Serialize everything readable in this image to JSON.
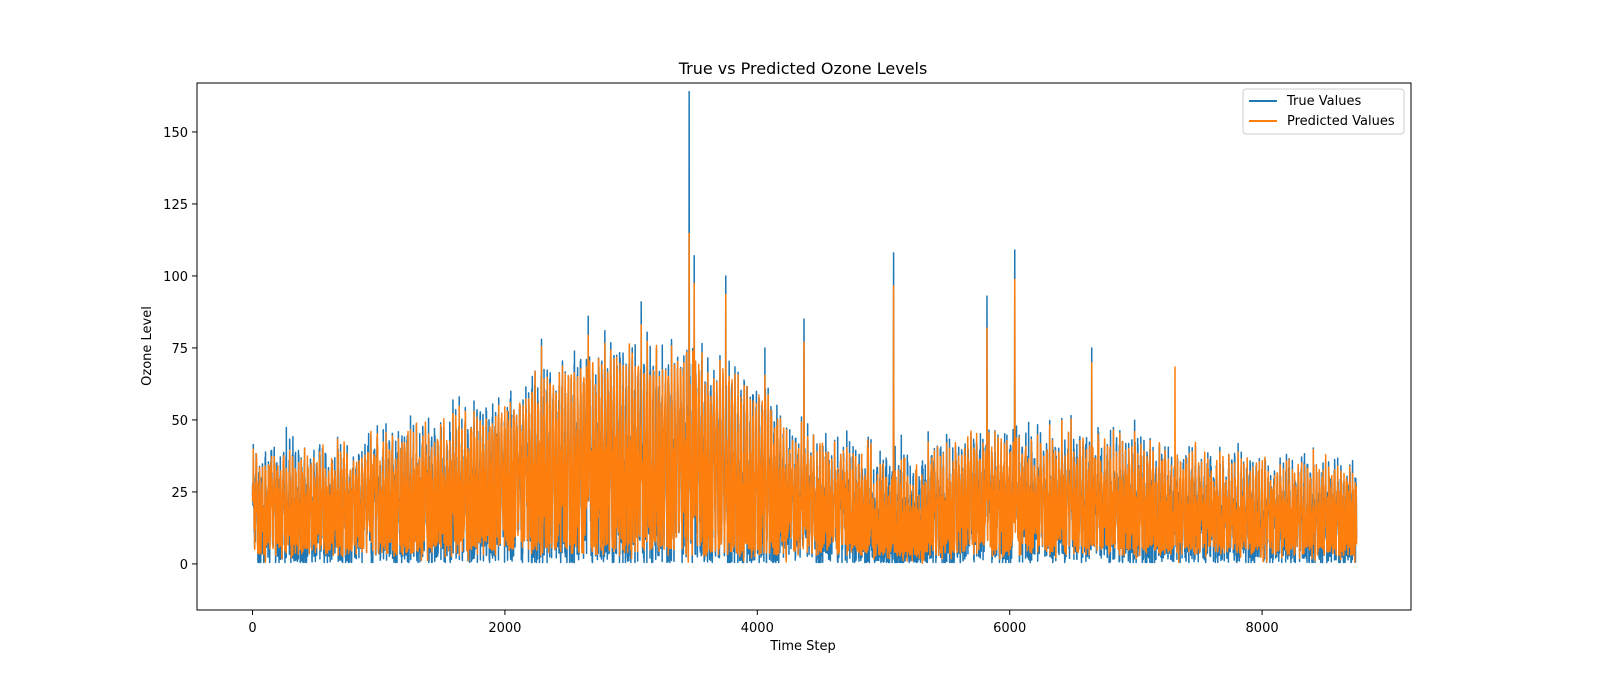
{
  "chart_data": {
    "type": "line",
    "title": "True vs Predicted Ozone Levels",
    "xlabel": "Time Step",
    "ylabel": "Ozone Level",
    "xlim": [
      -440,
      9180
    ],
    "ylim": [
      -16,
      167
    ],
    "x_ticks": [
      0,
      2000,
      4000,
      6000,
      8000
    ],
    "y_ticks": [
      0,
      25,
      50,
      75,
      100,
      125,
      150
    ],
    "grid": false,
    "legend_position": "top-right",
    "n_points": 8750,
    "series": [
      {
        "name": "True Values",
        "color": "#1f77b4",
        "notes": "hourly series, values 0–164",
        "peaks": [
          {
            "x": 3460,
            "y": 164
          },
          {
            "x": 6040,
            "y": 109
          },
          {
            "x": 5080,
            "y": 108
          },
          {
            "x": 3500,
            "y": 107
          },
          {
            "x": 3750,
            "y": 100
          },
          {
            "x": 5820,
            "y": 93
          },
          {
            "x": 3080,
            "y": 91
          },
          {
            "x": 2660,
            "y": 86
          },
          {
            "x": 4370,
            "y": 85
          },
          {
            "x": 2290,
            "y": 78
          },
          {
            "x": 6650,
            "y": 75
          },
          {
            "x": 4060,
            "y": 75
          }
        ]
      },
      {
        "name": "Predicted Values",
        "color": "#ff7f0e",
        "notes": "closely tracks true values with slightly damped extremes",
        "peaks": [
          {
            "x": 3460,
            "y": 113
          },
          {
            "x": 6040,
            "y": 104
          },
          {
            "x": 5080,
            "y": 101
          },
          {
            "x": 3500,
            "y": 99
          },
          {
            "x": 3750,
            "y": 94
          },
          {
            "x": 5820,
            "y": 83
          },
          {
            "x": 3080,
            "y": 83
          },
          {
            "x": 4370,
            "y": 81
          },
          {
            "x": 7310,
            "y": 72
          }
        ]
      }
    ]
  }
}
